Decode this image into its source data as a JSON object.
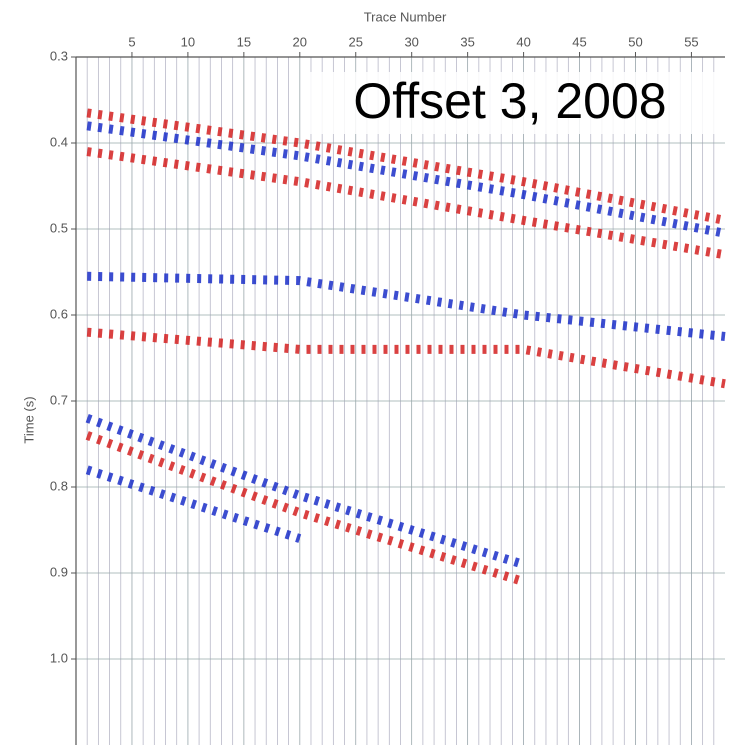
{
  "chart_data": {
    "type": "line",
    "title": "Offset 3, 2008",
    "x_label": "Trace Number",
    "y_label": "Time (s)",
    "x": [
      1,
      20,
      40,
      58
    ],
    "series": [
      {
        "color": "#d42020",
        "values": [
          0.365,
          0.4,
          0.445,
          0.49
        ]
      },
      {
        "color": "#1a2ec8",
        "values": [
          0.38,
          0.415,
          0.46,
          0.505
        ]
      },
      {
        "color": "#d42020",
        "values": [
          0.41,
          0.445,
          0.49,
          0.53
        ]
      },
      {
        "color": "#1a2ec8",
        "values": [
          0.555,
          0.56,
          0.6,
          0.625
        ]
      },
      {
        "color": "#1a2ec8",
        "values": [
          0.72,
          0.81,
          0.89,
          null
        ]
      },
      {
        "color": "#d42020",
        "values": [
          0.74,
          0.83,
          0.91,
          null
        ]
      },
      {
        "color": "#1a2ec8",
        "values": [
          0.78,
          0.86,
          null,
          null
        ]
      },
      {
        "color": "#d42020",
        "values": [
          0.62,
          0.64,
          0.64,
          0.68
        ]
      }
    ],
    "xlim": [
      0,
      58
    ],
    "xticks": [
      5,
      10,
      15,
      20,
      25,
      30,
      35,
      40,
      45,
      50,
      55
    ],
    "ylim": [
      0.3,
      1.1
    ],
    "yticks": [
      0.3,
      0.4,
      0.5,
      0.6,
      0.7,
      0.8,
      0.9,
      {
        "value": 1,
        "label": "1.0"
      }
    ],
    "grid": true
  }
}
